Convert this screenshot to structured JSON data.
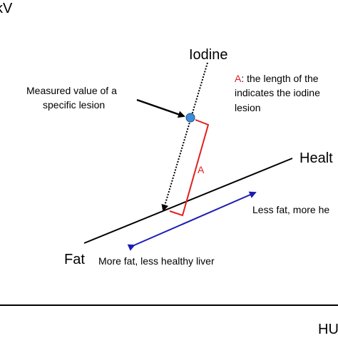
{
  "axes": {
    "y_label": "kV",
    "x_label": "HU"
  },
  "materials": {
    "iodine": "Iodine",
    "fat": "Fat",
    "healthy": "Healt"
  },
  "annotations": {
    "measured_line1": "Measured value of a",
    "measured_line2": "specific lesion",
    "a_label": "A",
    "a_marker": "A",
    "a_text_line1": ": the length of the",
    "a_text_line2": "indicates the iodine",
    "a_text_line3": "lesion",
    "less_fat": "Less fat, more he",
    "more_fat": "More fat, less healthy liver"
  },
  "colors": {
    "marker_red": "#e02020",
    "arrow_blue": "#1c1cb4",
    "point_blue": "#3a8fd8",
    "point_outline": "#1f4f8a",
    "text": "#000000"
  }
}
